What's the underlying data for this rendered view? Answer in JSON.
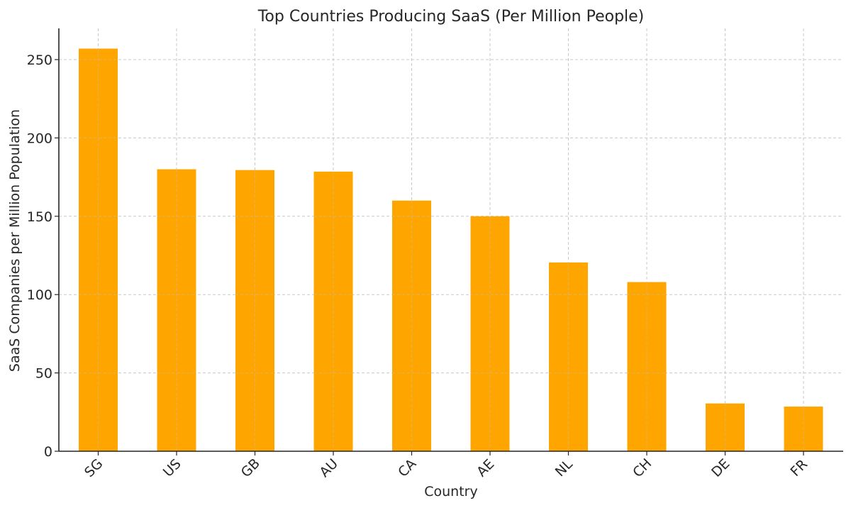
{
  "chart_data": {
    "type": "bar",
    "title": "Top Countries Producing SaaS (Per Million People)",
    "xlabel": "Country",
    "ylabel": "SaaS Companies per Million Population",
    "categories": [
      "SG",
      "US",
      "GB",
      "AU",
      "CA",
      "AE",
      "NL",
      "CH",
      "DE",
      "FR"
    ],
    "values": [
      257,
      180,
      179.5,
      178.5,
      160,
      150,
      120.5,
      108,
      30.5,
      28.5
    ],
    "ylim": [
      0,
      270
    ],
    "yticks": [
      0,
      50,
      100,
      150,
      200,
      250
    ],
    "grid": true,
    "grid_style": "dashed",
    "bar_color": "#FFA500",
    "xtick_rotation": 45,
    "legend": null
  }
}
